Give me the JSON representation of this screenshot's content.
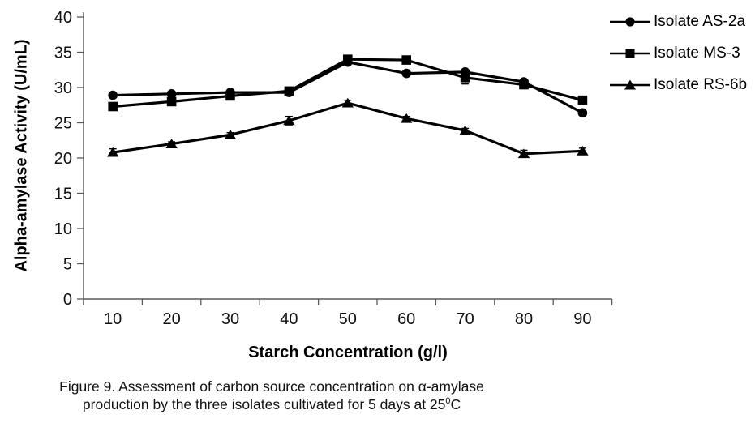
{
  "figure": {
    "caption_line1": "Figure 9. Assessment of carbon source concentration on α-amylase",
    "caption_line2_pre": "production by the three isolates cultivated for 5 days at 25",
    "caption_line2_sup": "0",
    "caption_line2_post": "C"
  },
  "chart_data": {
    "type": "line",
    "title": "",
    "xlabel": "Starch Concentration (g/l)",
    "ylabel": "Alpha-amylase Activity (U/mL)",
    "categories": [
      10,
      20,
      30,
      40,
      50,
      60,
      70,
      80,
      90
    ],
    "ylim": [
      0,
      40
    ],
    "yticks": [
      0,
      5,
      10,
      15,
      20,
      25,
      30,
      35,
      40
    ],
    "grid": false,
    "legend_position": "top-right",
    "line_color": "#000000",
    "axis_color": "#595959",
    "tick_label_color": "#111111",
    "series": [
      {
        "name": "Isolate AS-2a",
        "marker": "circle",
        "values": [
          28.9,
          29.1,
          29.3,
          29.3,
          33.6,
          32.0,
          32.2,
          30.8,
          26.4
        ],
        "errors": [
          0,
          0,
          0,
          0,
          0,
          0,
          0,
          0,
          0
        ]
      },
      {
        "name": "Isolate MS-3",
        "marker": "square",
        "values": [
          27.3,
          28.0,
          28.8,
          29.5,
          34.0,
          33.9,
          31.4,
          30.4,
          28.2
        ],
        "errors": [
          0,
          0,
          0,
          0.4,
          0,
          0,
          0.9,
          0,
          0
        ]
      },
      {
        "name": "Isolate RS-6b",
        "marker": "triangle",
        "values": [
          20.8,
          22.0,
          23.3,
          25.3,
          27.8,
          25.6,
          23.9,
          20.6,
          21.0
        ],
        "errors": [
          0.5,
          0.3,
          0.3,
          0.6,
          0.4,
          0.3,
          0.3,
          0.5,
          0.4
        ]
      }
    ]
  }
}
